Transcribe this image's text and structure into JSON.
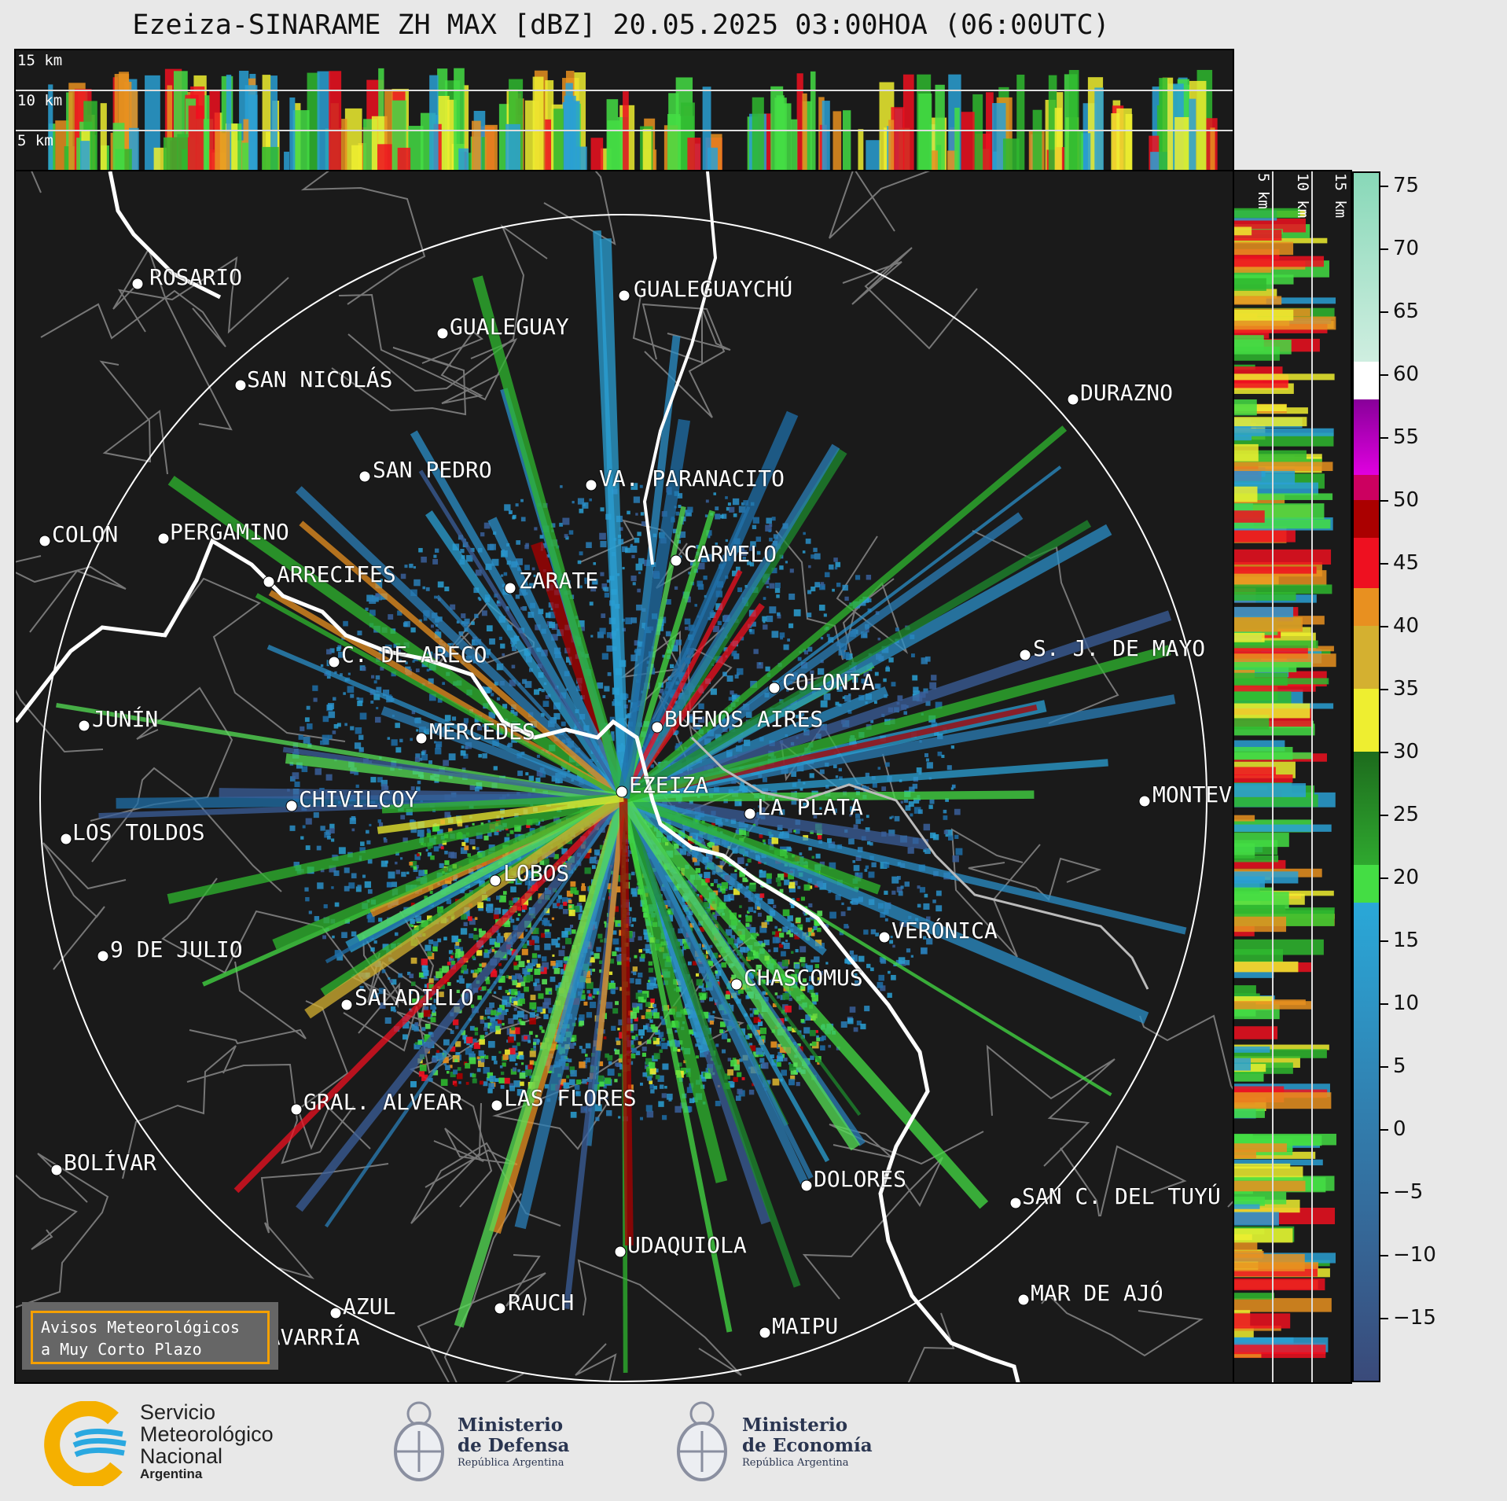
{
  "title": "Ezeiza-SINARAME ZH MAX [dBZ] 20.05.2025 03:00HOA (06:00UTC)",
  "top_panel": {
    "height_labels": [
      "15 km",
      "10 km",
      "5 km"
    ]
  },
  "right_panel": {
    "height_labels": [
      "5 km",
      "10 km",
      "15 km"
    ]
  },
  "colorbar": {
    "unit": "dBZ",
    "min": -20,
    "max": 76,
    "ticks": [
      "75",
      "70",
      "65",
      "60",
      "55",
      "50",
      "45",
      "40",
      "35",
      "30",
      "25",
      "20",
      "15",
      "10",
      "5",
      "0",
      "−5",
      "−10",
      "−15"
    ],
    "stops": [
      {
        "from": -20,
        "to": 18,
        "color": "#3a4a7a",
        "to_color": "#2aa8d8"
      },
      {
        "from": 18,
        "to": 21,
        "color": "#44dd44"
      },
      {
        "from": 21,
        "to": 30,
        "color": "#2fa82f",
        "to_color": "#1d6b1d"
      },
      {
        "from": 30,
        "to": 35,
        "color": "#eeee30"
      },
      {
        "from": 35,
        "to": 40,
        "color": "#d4b030"
      },
      {
        "from": 40,
        "to": 43,
        "color": "#e89020"
      },
      {
        "from": 43,
        "to": 47,
        "color": "#ee1020"
      },
      {
        "from": 47,
        "to": 50,
        "color": "#aa0000"
      },
      {
        "from": 50,
        "to": 52,
        "color": "#cc0060"
      },
      {
        "from": 52,
        "to": 58,
        "color": "#e000e0",
        "to_color": "#880099"
      },
      {
        "from": 58,
        "to": 61,
        "color": "#ffffff"
      },
      {
        "from": 61,
        "to": 76,
        "color": "#cfeee0",
        "to_color": "#88d8b8"
      }
    ]
  },
  "cities": [
    {
      "name": "ROSARIO",
      "dot": [
        175,
        361
      ],
      "label": [
        190,
        340
      ]
    },
    {
      "name": "GUALEGUAYCHÚ",
      "dot": [
        794,
        376
      ],
      "label": [
        806,
        355
      ]
    },
    {
      "name": "GUALEGUAY",
      "dot": [
        563,
        424
      ],
      "label": [
        572,
        403
      ]
    },
    {
      "name": "SAN NICOLÁS",
      "dot": [
        306,
        490
      ],
      "label": [
        314,
        470
      ]
    },
    {
      "name": "DURAZNO",
      "dot": [
        1365,
        508
      ],
      "label": [
        1374,
        487
      ]
    },
    {
      "name": "SAN PEDRO",
      "dot": [
        464,
        606
      ],
      "label": [
        474,
        585
      ]
    },
    {
      "name": "VA. PARANACITO",
      "dot": [
        752,
        617
      ],
      "label": [
        762,
        596
      ]
    },
    {
      "name": "COLON",
      "dot": [
        57,
        688
      ],
      "label": [
        66,
        667
      ]
    },
    {
      "name": "PERGAMINO",
      "dot": [
        208,
        685
      ],
      "label": [
        216,
        664
      ]
    },
    {
      "name": "CARMELO",
      "dot": [
        860,
        713
      ],
      "label": [
        870,
        692
      ]
    },
    {
      "name": "ARRECIFES",
      "dot": [
        342,
        740
      ],
      "label": [
        352,
        718
      ]
    },
    {
      "name": "ZARATE",
      "dot": [
        649,
        748
      ],
      "label": [
        660,
        726
      ]
    },
    {
      "name": "S. J. DE MAYO",
      "dot": [
        1304,
        833
      ],
      "label": [
        1314,
        812
      ]
    },
    {
      "name": "C. DE ARECO",
      "dot": [
        425,
        842
      ],
      "label": [
        434,
        820
      ]
    },
    {
      "name": "COLONIA",
      "dot": [
        985,
        875
      ],
      "label": [
        995,
        855
      ]
    },
    {
      "name": "BUENOS AIRES",
      "dot": [
        836,
        925
      ],
      "label": [
        845,
        902
      ]
    },
    {
      "name": "JUNÍN",
      "dot": [
        107,
        923
      ],
      "label": [
        117,
        902
      ]
    },
    {
      "name": "MERCEDES",
      "dot": [
        536,
        939
      ],
      "label": [
        546,
        918
      ]
    },
    {
      "name": "EZEIZA",
      "dot": [
        791,
        1007
      ],
      "label": [
        800,
        986
      ]
    },
    {
      "name": "MONTEVIDEO",
      "dot": [
        1456,
        1019
      ],
      "label": [
        1466,
        998
      ]
    },
    {
      "name": "CHIVILCOY",
      "dot": [
        371,
        1025
      ],
      "label": [
        380,
        1004
      ]
    },
    {
      "name": "LA PLATA",
      "dot": [
        954,
        1035
      ],
      "label": [
        963,
        1014
      ]
    },
    {
      "name": "LOS TOLDOS",
      "dot": [
        84,
        1067
      ],
      "label": [
        92,
        1046
      ]
    },
    {
      "name": "LOBOS",
      "dot": [
        630,
        1120
      ],
      "label": [
        640,
        1098
      ]
    },
    {
      "name": "VERÓNICA",
      "dot": [
        1125,
        1192
      ],
      "label": [
        1134,
        1171
      ]
    },
    {
      "name": "9 DE JULIO",
      "dot": [
        131,
        1216
      ],
      "label": [
        140,
        1195
      ]
    },
    {
      "name": "CHASCOMUS",
      "dot": [
        937,
        1252
      ],
      "label": [
        946,
        1231
      ]
    },
    {
      "name": "SALADILLO",
      "dot": [
        441,
        1278
      ],
      "label": [
        451,
        1256
      ]
    },
    {
      "name": "GRAL. ALVEAR",
      "dot": [
        377,
        1411
      ],
      "label": [
        386,
        1389
      ]
    },
    {
      "name": "LAS FLORES",
      "dot": [
        632,
        1406
      ],
      "label": [
        641,
        1384
      ]
    },
    {
      "name": "BOLÍVAR",
      "dot": [
        72,
        1488
      ],
      "label": [
        81,
        1466
      ]
    },
    {
      "name": "DOLORES",
      "dot": [
        1026,
        1508
      ],
      "label": [
        1035,
        1487
      ]
    },
    {
      "name": "SAN C. DEL TUYÚ",
      "dot": [
        1292,
        1530
      ],
      "label": [
        1300,
        1509
      ]
    },
    {
      "name": "UDAQUIOLA",
      "dot": [
        789,
        1592
      ],
      "label": [
        798,
        1571
      ]
    },
    {
      "name": "MAR DE AJÓ",
      "dot": [
        1302,
        1653
      ],
      "label": [
        1311,
        1632
      ]
    },
    {
      "name": "AZUL",
      "dot": [
        427,
        1670
      ],
      "label": [
        436,
        1649
      ]
    },
    {
      "name": "RAUCH",
      "dot": [
        636,
        1664
      ],
      "label": [
        646,
        1644
      ]
    },
    {
      "name": "OLAVARRÍA",
      "dot": [
        297,
        1710
      ],
      "label": [
        306,
        1688
      ]
    },
    {
      "name": "MAIPU",
      "dot": [
        973,
        1695
      ],
      "label": [
        982,
        1674
      ]
    }
  ],
  "aviso": {
    "line1": "Avisos Meteorológicos",
    "line2": "a Muy Corto Plazo"
  },
  "logos": {
    "smn": {
      "line1": "Servicio",
      "line2": "Meteorológico",
      "line3": "Nacional",
      "line4": "Argentina"
    },
    "defensa": {
      "line1": "Ministerio",
      "line2": "de Defensa",
      "line3": "República Argentina"
    },
    "economia": {
      "line1": "Ministerio",
      "line2": "de Economía",
      "line3": "República Argentina"
    }
  }
}
